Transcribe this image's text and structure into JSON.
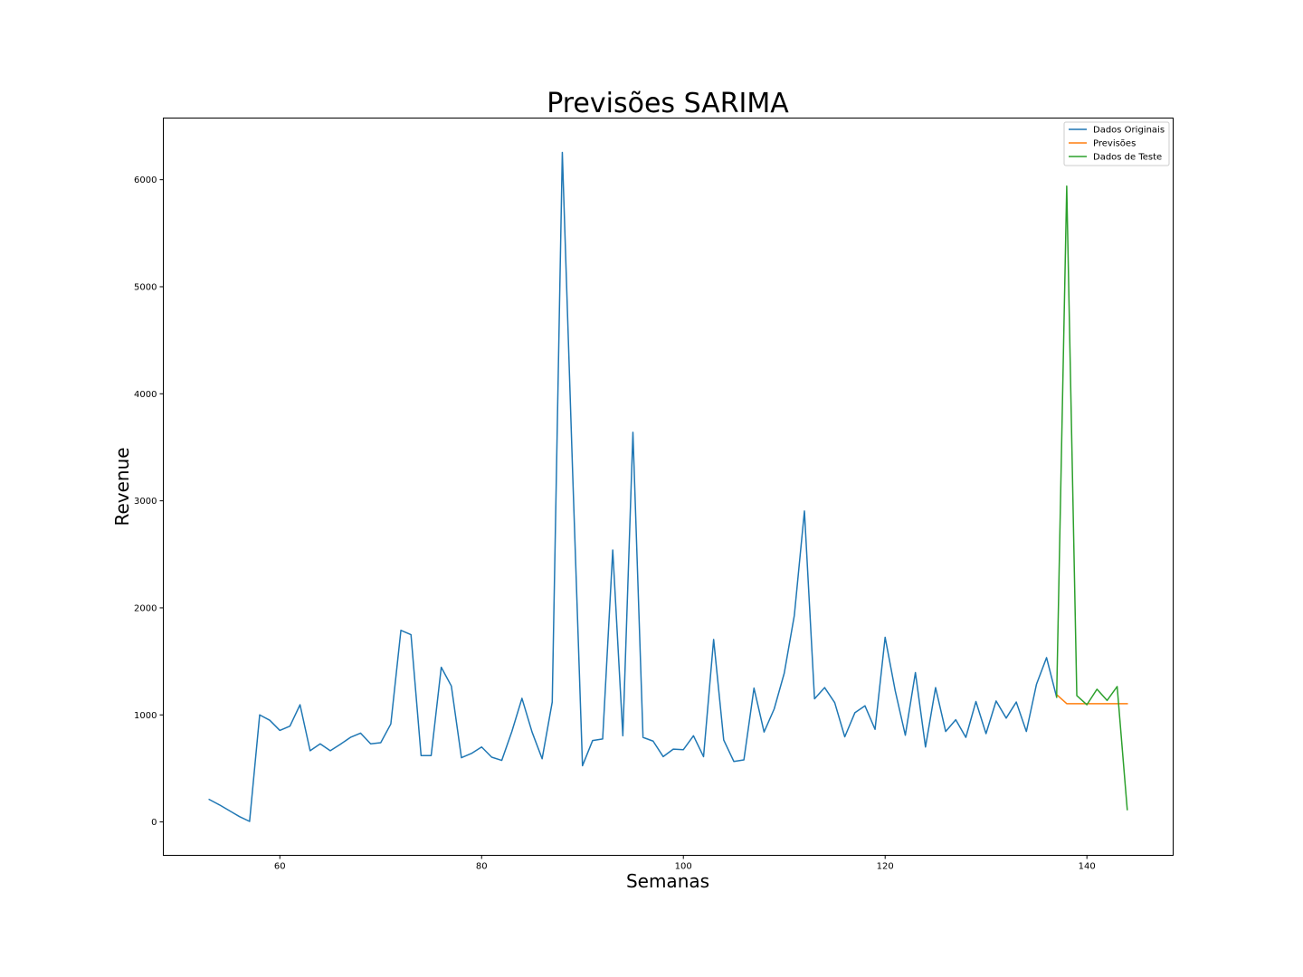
{
  "chart_data": {
    "type": "line",
    "title": "Previsões SARIMA",
    "xlabel": "Semanas",
    "ylabel": "Revenue",
    "xlim": [
      48.45,
      148.55
    ],
    "ylim": [
      -312,
      6576
    ],
    "xticks": [
      60,
      80,
      100,
      120,
      140
    ],
    "yticks": [
      0,
      1000,
      2000,
      3000,
      4000,
      5000,
      6000
    ],
    "grid": false,
    "legend_position": "top-right",
    "series": [
      {
        "name": "Dados Originais",
        "color": "#1f77b4",
        "x": [
          53,
          54,
          55,
          56,
          57,
          58,
          59,
          60,
          61,
          62,
          63,
          64,
          65,
          66,
          67,
          68,
          69,
          70,
          71,
          72,
          73,
          74,
          75,
          76,
          77,
          78,
          79,
          80,
          81,
          82,
          83,
          84,
          85,
          86,
          87,
          88,
          89,
          90,
          91,
          92,
          93,
          94,
          95,
          96,
          97,
          98,
          99,
          100,
          101,
          102,
          103,
          104,
          105,
          106,
          107,
          108,
          109,
          110,
          111,
          112,
          113,
          114,
          115,
          116,
          117,
          118,
          119,
          120,
          121,
          122,
          123,
          124,
          125,
          126,
          127,
          128,
          129,
          130,
          131,
          132,
          133,
          134,
          135,
          136,
          137
        ],
        "y": [
          210,
          160,
          105,
          50,
          5,
          1000,
          950,
          855,
          895,
          1095,
          665,
          730,
          665,
          725,
          790,
          830,
          730,
          740,
          915,
          1790,
          1750,
          620,
          620,
          1445,
          1270,
          600,
          640,
          700,
          605,
          575,
          845,
          1155,
          840,
          590,
          1120,
          6255,
          3330,
          525,
          760,
          775,
          2540,
          805,
          3640,
          790,
          755,
          610,
          680,
          675,
          805,
          610,
          1705,
          765,
          565,
          580,
          1250,
          840,
          1055,
          1390,
          1930,
          2905,
          1150,
          1255,
          1115,
          795,
          1020,
          1085,
          865,
          1725,
          1225,
          810,
          1395,
          700,
          1255,
          845,
          955,
          790,
          1125,
          825,
          1130,
          970,
          1120,
          845,
          1285,
          1535,
          1165
        ]
      },
      {
        "name": "Previsões",
        "color": "#ff7f0e",
        "x": [
          137,
          138,
          139,
          140,
          141,
          142,
          143,
          144
        ],
        "y": [
          1190,
          1105,
          1105,
          1105,
          1105,
          1105,
          1105,
          1105
        ]
      },
      {
        "name": "Dados de Teste",
        "color": "#2ca02c",
        "x": [
          137,
          138,
          139,
          140,
          141,
          142,
          143,
          144
        ],
        "y": [
          1165,
          5940,
          1180,
          1095,
          1240,
          1135,
          1265,
          115
        ]
      }
    ]
  }
}
